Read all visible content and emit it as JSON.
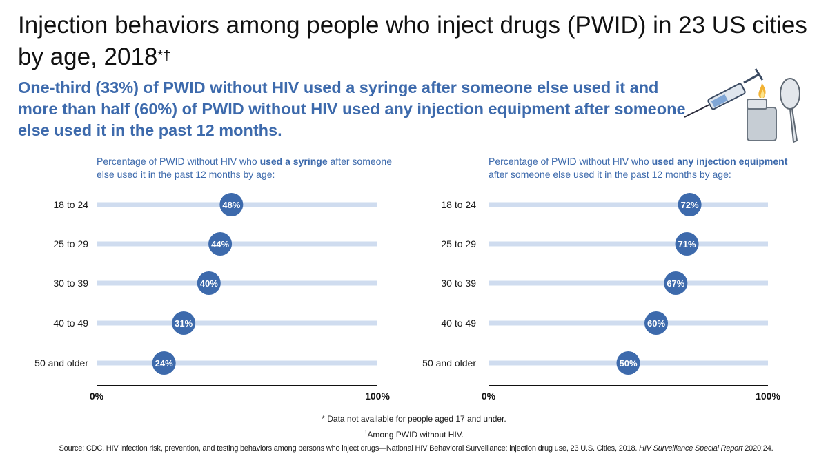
{
  "title": {
    "text": "Injection behaviors among people who inject drugs (PWID) in 23 US cities by age, 2018",
    "marks": "*†"
  },
  "subtitle": "One-third (33%) of PWID without HIV used a syringe after someone else used it and more than half (60%) of PWID without HIV used any injection equipment after someone else used it in the past 12 months.",
  "illustration_icons": [
    "syringe-icon",
    "lighter-icon",
    "spoon-icon"
  ],
  "colors": {
    "accent": "#3d6aac",
    "track": "#cfdcef",
    "dot": "#3d6aac",
    "axis": "#111111"
  },
  "chart_data": [
    {
      "type": "dot",
      "heading_pre": "Percentage of PWID without HIV who ",
      "heading_bold": "used a syringe",
      "heading_post": " after someone else used it in the past 12 months by age:",
      "categories": [
        "18 to 24",
        "25 to 29",
        "30 to 39",
        "40 to 49",
        "50 and older"
      ],
      "values": [
        48,
        44,
        40,
        31,
        24
      ],
      "value_labels": [
        "48%",
        "44%",
        "40%",
        "31%",
        "24%"
      ],
      "xlim": [
        0,
        100
      ],
      "tick_labels": [
        "0%",
        "100%"
      ]
    },
    {
      "type": "dot",
      "heading_pre": "Percentage of PWID without HIV who ",
      "heading_bold": "used any injection equipment",
      "heading_post": " after someone else used it in the past 12 months by age:",
      "categories": [
        "18 to 24",
        "25 to 29",
        "30 to 39",
        "40 to 49",
        "50 and older"
      ],
      "values": [
        72,
        71,
        67,
        60,
        50
      ],
      "value_labels": [
        "72%",
        "71%",
        "67%",
        "60%",
        "50%"
      ],
      "xlim": [
        0,
        100
      ],
      "tick_labels": [
        "0%",
        "100%"
      ]
    }
  ],
  "footnotes": {
    "note1": "* Data not available for people aged 17 and under.",
    "note2_mark": "†",
    "note2": "Among PWID without HIV."
  },
  "source": {
    "text": "Source: CDC. HIV infection risk, prevention, and testing behaviors among persons who inject drugs—National HIV Behavioral Surveillance: injection drug use, 23 U.S. Cities, 2018. ",
    "italic": "HIV Surveillance Special Report",
    "tail": " 2020;24."
  }
}
